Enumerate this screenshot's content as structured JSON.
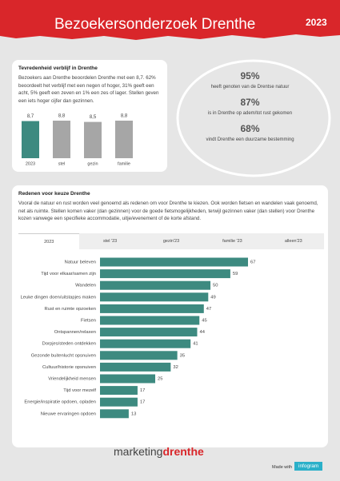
{
  "header": {
    "title": "Bezoekersonderzoek Drenthe",
    "year": "2023"
  },
  "satisfaction": {
    "title": "Tevredenheid verblijf in Drenthe",
    "text": "Bezoekers aan Drenthe beoordelen Drenthe met een 8,7.   62% beoordeelt het verblijf met een negen of hoger, 31% geeft een acht, 5% geeft een zeven en 1% een zes of lager. Stellen geven een iets hoger cijfer dan gezinnen."
  },
  "stats": [
    {
      "value": "95%",
      "label": "heeft genoten van de Drentse natuur"
    },
    {
      "value": "87%",
      "label": "is in Drenthe op adem/tot rust gekomen"
    },
    {
      "value": "68%",
      "label": "vindt Drenthe een duurzame bestemming"
    }
  ],
  "reasons": {
    "title": "Redenen voor keuze Drenthe",
    "text": "Vooral de natuur en rust worden veel genoemd als redenen om voor Drenthe te kiezen. Ook worden fietsen en wandelen vaak genoemd, net als ruimte. Stellen komen vaker (dan gezinnen) voor de goede fietsmogelijkheden, terwijl gezinnen vaker (dan stellen) voor Drenthe kozen vanwege een specifieke accommodatie, uitje/evenement of de korte afstand.",
    "tabs": [
      "2023",
      "stel '23",
      "gezin'23",
      "familie '23",
      "alleen'23"
    ]
  },
  "chart_data": [
    {
      "type": "bar",
      "categories": [
        "2023",
        "stel",
        "gezin",
        "familie"
      ],
      "values": [
        8.7,
        8.8,
        8.5,
        8.8
      ],
      "value_labels": [
        "8,7",
        "8,8",
        "8,5",
        "8,8"
      ],
      "colors": [
        "#3d8a80",
        "#a6a6a6",
        "#a6a6a6",
        "#a6a6a6"
      ]
    },
    {
      "type": "hbar",
      "categories": [
        "Natuur beleven",
        "Tijd voor elkaar/samen zijn",
        "Wandelen",
        "Leuke dingen doen/uitstapjes maken",
        "Rust en ruimte opzoeken",
        "Fietsen",
        "Ontspannen/relaxen",
        "Dorpjes/steden ontdekken",
        "Gezonde buitenlucht opsnuiven",
        "Cultuur/historie opsnuiven",
        "Vriendelijkheid mensen",
        "Tijd voor mezelf",
        "Energie/inspiratie opdoen, opladen",
        "Nieuwe ervaringen opdoen"
      ],
      "values": [
        67,
        59,
        50,
        49,
        47,
        45,
        44,
        41,
        35,
        32,
        25,
        17,
        17,
        13
      ],
      "color": "#3d8a80"
    }
  ],
  "footer": {
    "brand_light": "marketing",
    "brand_bold": "drenthe",
    "made_with": "Made with",
    "tool": "infogram"
  }
}
